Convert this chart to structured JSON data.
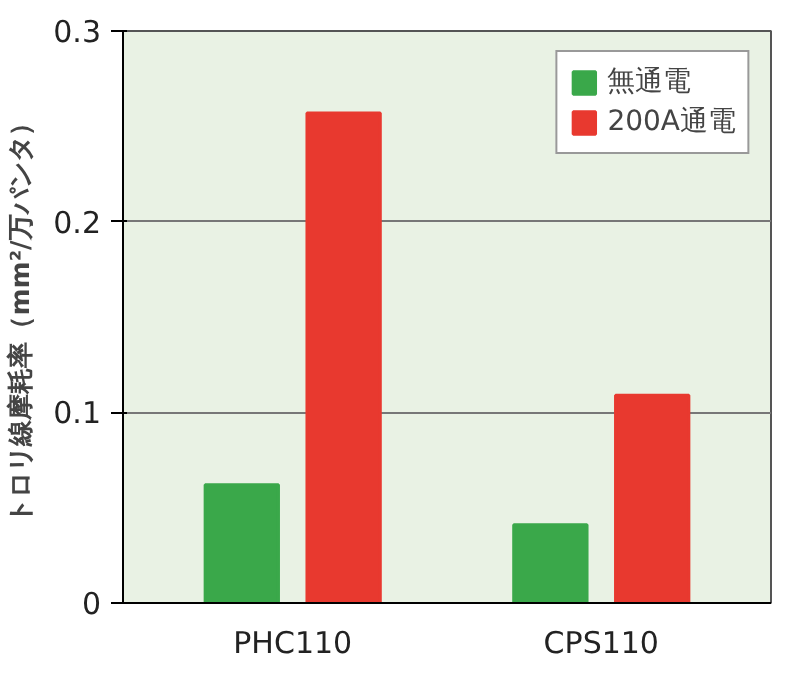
{
  "chart_data": {
    "type": "bar",
    "ylabel": "トロリ線摩耗率（mm²/万パンタ）",
    "categories": [
      "PHC110",
      "CPS110"
    ],
    "series": [
      {
        "name": "無通電",
        "color": "#3aa84a",
        "values": [
          0.062,
          0.041
        ]
      },
      {
        "name": "200A通電",
        "color": "#e8392f",
        "values": [
          0.257,
          0.109
        ]
      }
    ],
    "ylim": [
      0,
      0.3
    ],
    "yticks": [
      0,
      0.1,
      0.2,
      0.3
    ],
    "grid": "y",
    "legend": "top right"
  }
}
